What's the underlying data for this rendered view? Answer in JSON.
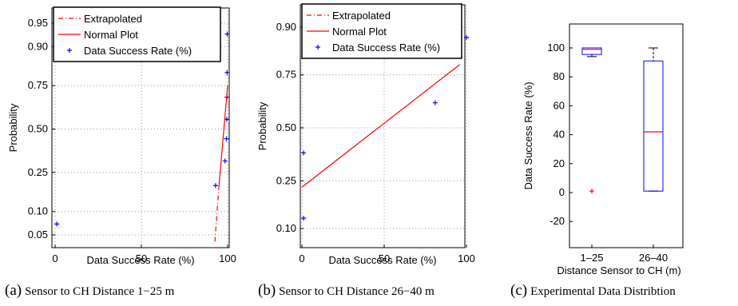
{
  "chart_data": [
    {
      "type": "scatter",
      "title": "",
      "xlabel": "Data Success Rate (%)",
      "ylabel": "Probability",
      "xlim": [
        0,
        100
      ],
      "x_ticks": [
        0,
        50,
        100
      ],
      "y_scale": "normal-probability",
      "y_ticks": [
        0.05,
        0.1,
        0.25,
        0.5,
        0.75,
        0.9,
        0.95
      ],
      "y_tick_labels": [
        "0.05",
        "0.10",
        "0.25",
        "0.50",
        "0.75",
        "0.90",
        "0.95"
      ],
      "grid": true,
      "legend_position": "top-left",
      "legend": [
        "Extrapolated",
        "Normal Plot",
        "Data Success Rate (%)"
      ],
      "series": [
        {
          "name": "Data Success Rate (%)",
          "marker": "+",
          "color": "#0000ff",
          "points": [
            [
              1,
              0.07
            ],
            [
              93,
              0.19
            ],
            [
              98.5,
              0.31
            ],
            [
              99.3,
              0.44
            ],
            [
              99.5,
              0.56
            ],
            [
              99.6,
              0.69
            ],
            [
              99.7,
              0.81
            ],
            [
              99.8,
              0.93
            ]
          ]
        },
        {
          "name": "Normal Plot",
          "style": "solid",
          "color": "#ff0000",
          "points": [
            [
              95,
              0.19
            ],
            [
              100,
              0.75
            ]
          ]
        },
        {
          "name": "Extrapolated",
          "style": "dash-dot",
          "color": "#ff0000",
          "points": [
            [
              92.6,
              0.04
            ],
            [
              95,
              0.19
            ]
          ]
        }
      ]
    },
    {
      "type": "scatter",
      "title": "",
      "xlabel": "Data Success Rate (%)",
      "ylabel": "Probability",
      "xlim": [
        0,
        100
      ],
      "x_ticks": [
        0,
        50,
        100
      ],
      "y_scale": "normal-probability",
      "y_ticks": [
        0.1,
        0.25,
        0.5,
        0.75,
        0.9
      ],
      "y_tick_labels": [
        "0.10",
        "0.25",
        "0.50",
        "0.75",
        "0.90"
      ],
      "grid": true,
      "legend_position": "top-left",
      "legend": [
        "Extrapolated",
        "Normal Plot",
        "Data Success Rate (%)"
      ],
      "series": [
        {
          "name": "Data Success Rate (%)",
          "marker": "+",
          "color": "#0000ff",
          "points": [
            [
              1,
              0.125
            ],
            [
              1,
              0.375
            ],
            [
              81,
              0.625
            ],
            [
              100,
              0.875
            ]
          ]
        },
        {
          "name": "Normal Plot",
          "style": "solid",
          "color": "#ff0000",
          "points": [
            [
              0,
              0.225
            ],
            [
              96,
              0.79
            ]
          ]
        }
      ]
    },
    {
      "type": "box",
      "title": "",
      "xlabel": "Distance Sensor to CH (m)",
      "ylabel": "Data Success Rate (%)",
      "ylim": [
        -30,
        115
      ],
      "y_ticks": [
        -20,
        0,
        20,
        40,
        60,
        80,
        100
      ],
      "categories": [
        "1–25",
        "26–40"
      ],
      "boxes": [
        {
          "category": "1–25",
          "min": 94,
          "q1": 95.5,
          "median": 99,
          "q3": 100,
          "max": 100,
          "outliers": [
            1
          ]
        },
        {
          "category": "26–40",
          "min": 1,
          "q1": 1,
          "median": 42,
          "q3": 91,
          "max": 100,
          "outliers": []
        }
      ]
    }
  ],
  "captions": [
    {
      "label": "(a)",
      "text": "Sensor to CH Distance 1−25 m"
    },
    {
      "label": "(b)",
      "text": "Sensor to CH Distance 26−40 m"
    },
    {
      "label": "(c)",
      "text": "Experimental Data Distribtion"
    }
  ]
}
